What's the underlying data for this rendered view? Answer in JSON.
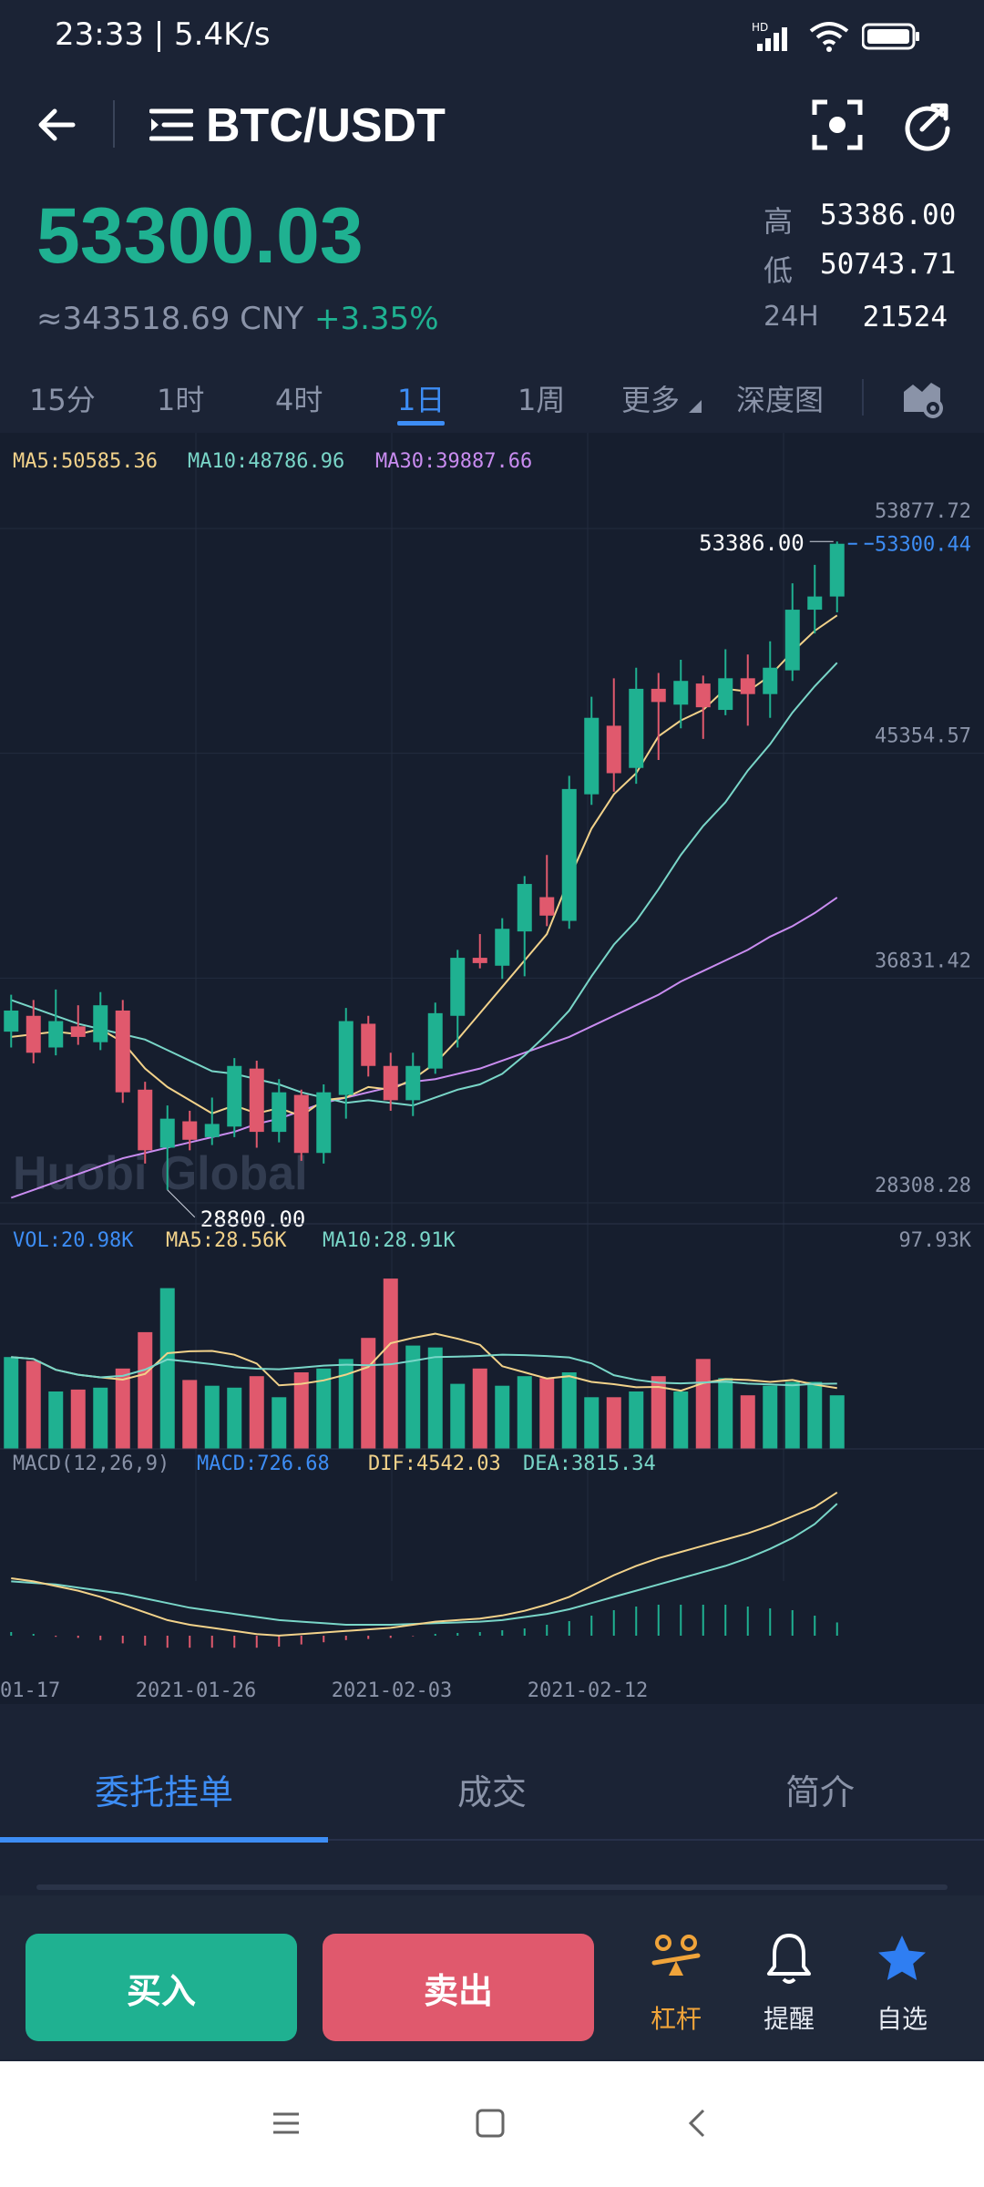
{
  "status_bar": {
    "time": "23:33 | 5.4K/s",
    "network": "HD"
  },
  "header": {
    "title": "BTC/USDT",
    "back_icon": "arrow-left-icon",
    "menu_icon": "list-icon",
    "scan_icon": "screenshot-icon",
    "share_icon": "share-icon"
  },
  "price": {
    "last": "53300.03",
    "cny": "≈343518.69 CNY",
    "change": "+3.35%",
    "high_label": "高",
    "high": "53386.00",
    "low_label": "低",
    "low": "50743.71",
    "vol_label": "24H",
    "vol": "21524"
  },
  "timeframes": {
    "items": [
      "15分",
      "1时",
      "4时",
      "1日",
      "1周",
      "更多",
      "深度图"
    ],
    "active": "1日"
  },
  "colors": {
    "up": "#1fb191",
    "down": "#e0596d",
    "accent": "#3d8df5",
    "ma5": "#f2d28a",
    "ma10": "#79d6c8",
    "ma30": "#c98cf0"
  },
  "chart_data": {
    "type": "candlestick",
    "x_ticks": [
      "01-17",
      "2021-01-26",
      "2021-02-03",
      "2021-02-12"
    ],
    "y_ticks": [
      "53877.72",
      "45354.57",
      "36831.42",
      "28308.28"
    ],
    "ylim": [
      28308.28,
      53877.72
    ],
    "series_labels": {
      "ma5": "MA5:50585.36",
      "ma10": "MA10:48786.96",
      "ma30": "MA30:39887.66"
    },
    "annotations": {
      "high_mark": "53386.00",
      "low_mark": "28800.00",
      "last_price_line": "53300.44"
    },
    "watermark": "Huobi Global",
    "candles": [
      {
        "o": 34800,
        "c": 35600,
        "h": 36200,
        "l": 34200
      },
      {
        "o": 35400,
        "c": 34000,
        "h": 36000,
        "l": 33600
      },
      {
        "o": 34200,
        "c": 35200,
        "h": 36400,
        "l": 33900
      },
      {
        "o": 35000,
        "c": 34600,
        "h": 35800,
        "l": 34300
      },
      {
        "o": 34400,
        "c": 35800,
        "h": 36300,
        "l": 34100
      },
      {
        "o": 35600,
        "c": 32500,
        "h": 36000,
        "l": 32100
      },
      {
        "o": 32600,
        "c": 30300,
        "h": 32900,
        "l": 29800
      },
      {
        "o": 30400,
        "c": 31500,
        "h": 32000,
        "l": 28800
      },
      {
        "o": 31400,
        "c": 30700,
        "h": 31800,
        "l": 30300
      },
      {
        "o": 30800,
        "c": 31300,
        "h": 32300,
        "l": 30500
      },
      {
        "o": 31200,
        "c": 33500,
        "h": 33800,
        "l": 30800
      },
      {
        "o": 33400,
        "c": 31000,
        "h": 33700,
        "l": 30400
      },
      {
        "o": 31000,
        "c": 32500,
        "h": 33000,
        "l": 30600
      },
      {
        "o": 32400,
        "c": 30200,
        "h": 32600,
        "l": 29900
      },
      {
        "o": 30200,
        "c": 32500,
        "h": 32800,
        "l": 29800
      },
      {
        "o": 32400,
        "c": 35200,
        "h": 35700,
        "l": 31500
      },
      {
        "o": 35100,
        "c": 33500,
        "h": 35400,
        "l": 33100
      },
      {
        "o": 33500,
        "c": 32200,
        "h": 34000,
        "l": 31800
      },
      {
        "o": 32200,
        "c": 33500,
        "h": 34000,
        "l": 31600
      },
      {
        "o": 33400,
        "c": 35500,
        "h": 35900,
        "l": 33200
      },
      {
        "o": 35400,
        "c": 37600,
        "h": 37900,
        "l": 34200
      },
      {
        "o": 37600,
        "c": 37400,
        "h": 38500,
        "l": 37200
      },
      {
        "o": 37300,
        "c": 38700,
        "h": 39100,
        "l": 36800
      },
      {
        "o": 38600,
        "c": 40400,
        "h": 40700,
        "l": 36900
      },
      {
        "o": 39900,
        "c": 39200,
        "h": 41500,
        "l": 38800
      },
      {
        "o": 39000,
        "c": 44000,
        "h": 44500,
        "l": 38700
      },
      {
        "o": 43800,
        "c": 46700,
        "h": 47500,
        "l": 43400
      },
      {
        "o": 46400,
        "c": 44600,
        "h": 48200,
        "l": 43900
      },
      {
        "o": 44800,
        "c": 47800,
        "h": 48600,
        "l": 44200
      },
      {
        "o": 47800,
        "c": 47300,
        "h": 48400,
        "l": 45100
      },
      {
        "o": 47200,
        "c": 48100,
        "h": 48900,
        "l": 46300
      },
      {
        "o": 48000,
        "c": 47100,
        "h": 48300,
        "l": 45900
      },
      {
        "o": 47000,
        "c": 48200,
        "h": 49300,
        "l": 46800
      },
      {
        "o": 48200,
        "c": 47600,
        "h": 49100,
        "l": 46400
      },
      {
        "o": 47600,
        "c": 48600,
        "h": 49600,
        "l": 46700
      },
      {
        "o": 48500,
        "c": 50800,
        "h": 51800,
        "l": 48100
      },
      {
        "o": 50800,
        "c": 51300,
        "h": 52500,
        "l": 49900
      },
      {
        "o": 51300,
        "c": 53300,
        "h": 53386,
        "l": 50700
      }
    ],
    "ma5": [
      34600,
      34700,
      34800,
      34700,
      34900,
      34400,
      33400,
      32700,
      32200,
      31700,
      32000,
      31700,
      31900,
      31600,
      32200,
      32300,
      32700,
      32600,
      33000,
      33600,
      34500,
      35500,
      36500,
      37500,
      38500,
      40600,
      42500,
      43800,
      44600,
      46000,
      46600,
      47000,
      47800,
      47700,
      48300,
      49200,
      50000,
      50585
    ],
    "ma10": [
      36000,
      35700,
      35400,
      35100,
      34900,
      34700,
      34500,
      34100,
      33700,
      33300,
      33200,
      33000,
      32800,
      32500,
      32300,
      32100,
      32200,
      32100,
      32000,
      32300,
      32600,
      32800,
      33200,
      33900,
      34700,
      35600,
      36900,
      38100,
      39000,
      40200,
      41500,
      42600,
      43500,
      44700,
      45700,
      46900,
      47900,
      48786
    ],
    "ma30": [
      28500,
      28800,
      29100,
      29400,
      29700,
      30000,
      30200,
      30400,
      30600,
      30800,
      31000,
      31300,
      31500,
      31800,
      32100,
      32300,
      32500,
      32700,
      32900,
      33000,
      33200,
      33400,
      33700,
      34000,
      34300,
      34600,
      35000,
      35400,
      35800,
      36200,
      36700,
      37100,
      37500,
      37900,
      38400,
      38800,
      39300,
      39887
    ]
  },
  "volume": {
    "vol_label": "VOL:20.98K",
    "ma5_label": "MA5:28.56K",
    "ma10_label": "MA10:28.91K",
    "max_label": "97.93K",
    "values": [
      48,
      46,
      30,
      31,
      32,
      42,
      61,
      84,
      36,
      33,
      32,
      38,
      27,
      40,
      42,
      47,
      58,
      89,
      54,
      53,
      34,
      42,
      33,
      38,
      37,
      40,
      27,
      27,
      30,
      38,
      30,
      47,
      37,
      28,
      33,
      35,
      35,
      28
    ]
  },
  "macd": {
    "title": "MACD(12,26,9)",
    "macd_label": "MACD:726.68",
    "dif_label": "DIF:4542.03",
    "dea_label": "DEA:3815.34",
    "dif": [
      -1000,
      -1200,
      -1500,
      -1800,
      -2200,
      -2700,
      -3200,
      -3700,
      -4000,
      -4200,
      -4400,
      -4600,
      -4700,
      -4600,
      -4500,
      -4400,
      -4300,
      -4200,
      -4000,
      -3800,
      -3700,
      -3600,
      -3400,
      -3100,
      -2700,
      -2200,
      -1500,
      -800,
      -200,
      300,
      700,
      1100,
      1500,
      1900,
      2400,
      3000,
      3600,
      4542
    ],
    "dea": [
      -1200,
      -1300,
      -1400,
      -1600,
      -1800,
      -2000,
      -2300,
      -2600,
      -2900,
      -3100,
      -3300,
      -3500,
      -3700,
      -3800,
      -3900,
      -4000,
      -4000,
      -4000,
      -3950,
      -3900,
      -3850,
      -3800,
      -3700,
      -3500,
      -3300,
      -3000,
      -2600,
      -2200,
      -1800,
      -1400,
      -1000,
      -600,
      -200,
      300,
      900,
      1600,
      2500,
      3815
    ],
    "hist": [
      200,
      100,
      -100,
      -200,
      -400,
      -700,
      -900,
      -1100,
      -1100,
      -1100,
      -1100,
      -1100,
      -1000,
      -800,
      -600,
      -400,
      -300,
      -200,
      -50,
      100,
      150,
      200,
      300,
      400,
      600,
      800,
      1100,
      1400,
      1600,
      1700,
      1700,
      1700,
      1700,
      1600,
      1500,
      1400,
      1100,
      727
    ]
  },
  "bottom_tabs": {
    "items": [
      "委托挂单",
      "成交",
      "简介"
    ],
    "active": "委托挂单"
  },
  "actions": {
    "buy": "买入",
    "sell": "卖出",
    "leverage": "杠杆",
    "alert": "提醒",
    "favorite": "自选"
  },
  "nav": {
    "menu_icon": "menu-icon",
    "home_icon": "home-icon",
    "back_icon": "back-icon"
  }
}
